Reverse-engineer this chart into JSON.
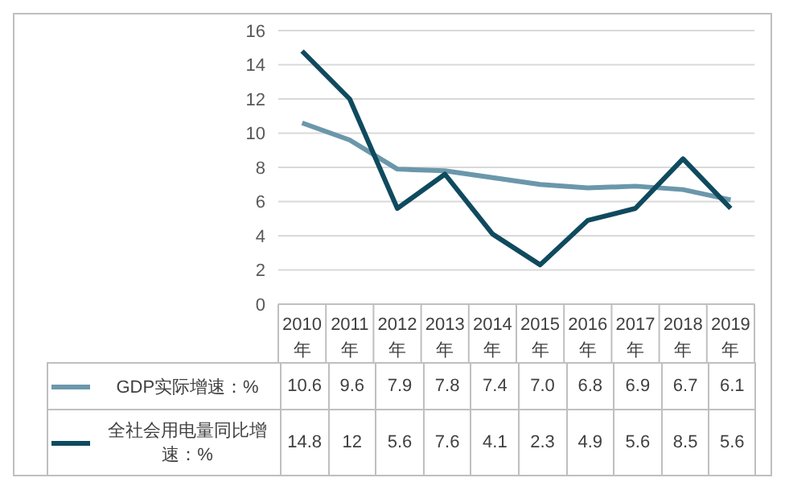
{
  "chart_data": {
    "type": "line",
    "categories": [
      "2010年",
      "2011年",
      "2012年",
      "2013年",
      "2014年",
      "2015年",
      "2016年",
      "2017年",
      "2018年",
      "2019年"
    ],
    "series": [
      {
        "name": "GDP实际增速：%",
        "color": "#6b97ab",
        "values": [
          10.6,
          9.6,
          7.9,
          7.8,
          7.4,
          7.0,
          6.8,
          6.9,
          6.7,
          6.1
        ],
        "value_labels": [
          "10.6",
          "9.6",
          "7.9",
          "7.8",
          "7.4",
          "7.0",
          "6.8",
          "6.9",
          "6.7",
          "6.1"
        ]
      },
      {
        "name": "全社会用电量同比增速：%",
        "color": "#0f4a5e",
        "values": [
          14.8,
          12,
          5.6,
          7.6,
          4.1,
          2.3,
          4.9,
          5.6,
          8.5,
          5.6
        ],
        "value_labels": [
          "14.8",
          "12",
          "5.6",
          "7.6",
          "4.1",
          "2.3",
          "4.9",
          "5.6",
          "8.5",
          "5.6"
        ]
      }
    ],
    "ylim": [
      0,
      16
    ],
    "yticks": [
      0,
      2,
      4,
      6,
      8,
      10,
      12,
      14,
      16
    ],
    "grid": "y",
    "legend": "bottom",
    "marker": "none",
    "line_style": "solid"
  }
}
